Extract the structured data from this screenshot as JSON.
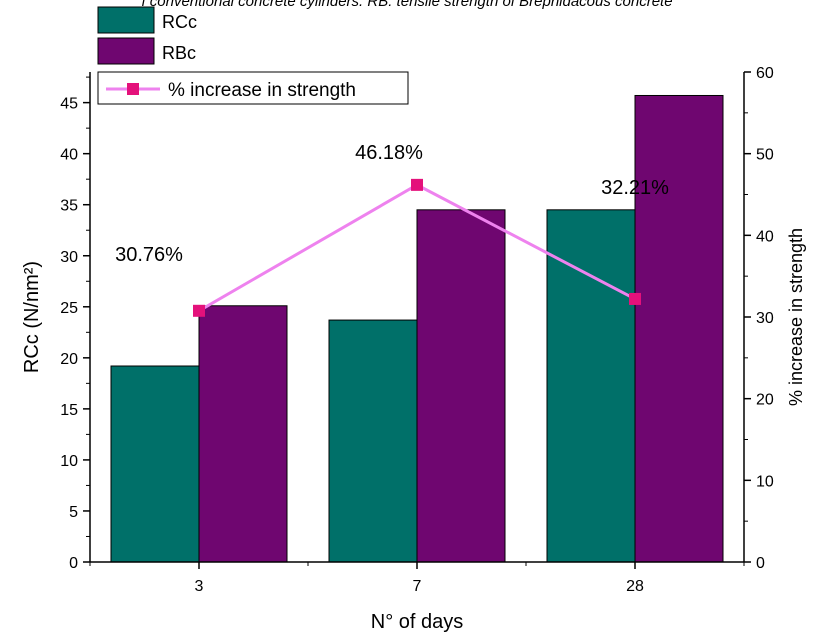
{
  "caption": "f conventional concrete cylinders. RB: tensile strength of Brephidacous concrete",
  "colors": {
    "rcc": "#007069",
    "rbc": "#6f0670",
    "line": "#ee82ee",
    "marker": "#e4117b",
    "axis": "#000000"
  },
  "chart_data": {
    "type": "bar",
    "categories": [
      "3",
      "7",
      "28"
    ],
    "xlabel": "N° of days",
    "ylabel_left": "RCc (N/nm²)",
    "ylabel_right": "% increase in strength",
    "ylim_left": [
      0,
      48
    ],
    "ylim_right": [
      0,
      60
    ],
    "yticks_left": [
      "0",
      "5",
      "10",
      "15",
      "20",
      "25",
      "30",
      "35",
      "40",
      "45"
    ],
    "yticks_right": [
      "0",
      "10",
      "20",
      "30",
      "40",
      "50",
      "60"
    ],
    "legend_placement": "top-left",
    "series": [
      {
        "name": "RCc",
        "kind": "bar",
        "axis": "left",
        "values": [
          19.2,
          23.7,
          34.5
        ]
      },
      {
        "name": "RBc",
        "kind": "bar",
        "axis": "left",
        "values": [
          25.1,
          34.5,
          45.7
        ]
      },
      {
        "name": "% increase in strength",
        "kind": "line",
        "axis": "right",
        "values": [
          30.76,
          46.18,
          32.21
        ]
      }
    ],
    "annotations": [
      "30.76%",
      "46.18%",
      "32.21%"
    ]
  }
}
